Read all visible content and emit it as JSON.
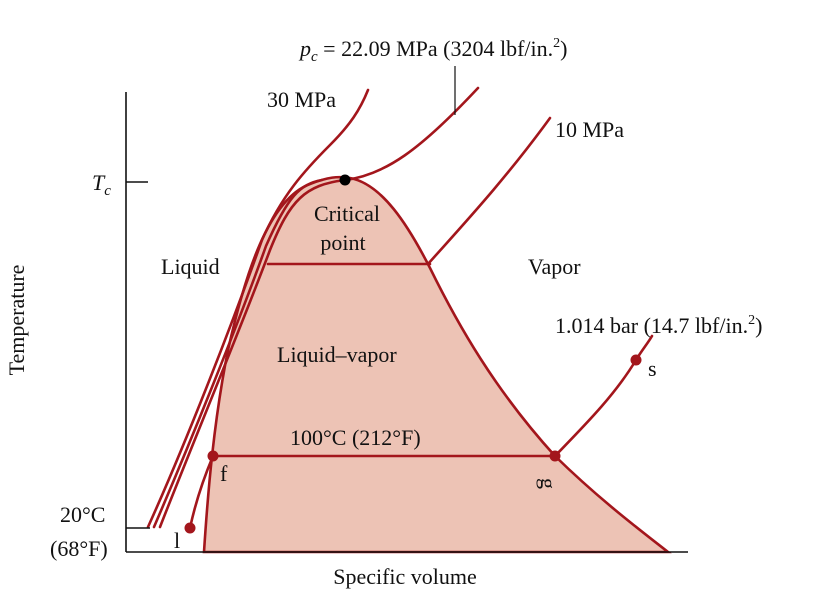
{
  "colors": {
    "region_fill": "#EDC3B5",
    "isobar": "#A3161C",
    "state_point": "#A3161C",
    "critical_point": "#000000",
    "axis": "#111111"
  },
  "axes": {
    "x_label": "Specific volume",
    "y_label": "Temperature",
    "tc_label": "T",
    "tc_sub": "c",
    "t20c": "20°C",
    "t68f": "(68°F)"
  },
  "isobars": {
    "pc_symbol": "p",
    "pc_sub": "c",
    "pc_value": " = 22.09 MPa (3204 lbf/in.",
    "pc_sup": "2",
    "pc_close": ")",
    "p30": "30 MPa",
    "p10": "10 MPa",
    "p1014_text": "1.014 bar (14.7 lbf/in.",
    "p1014_sup": "2",
    "p1014_close": ")"
  },
  "regions": {
    "liquid": "Liquid",
    "vapor": "Vapor",
    "liquid_vapor": "Liquid–vapor",
    "critical_line1": "Critical",
    "critical_line2": "point"
  },
  "isotherm": {
    "label": "100°C (212°F)"
  },
  "states": {
    "l": "l",
    "f": "f",
    "g": "g",
    "s": "s"
  }
}
